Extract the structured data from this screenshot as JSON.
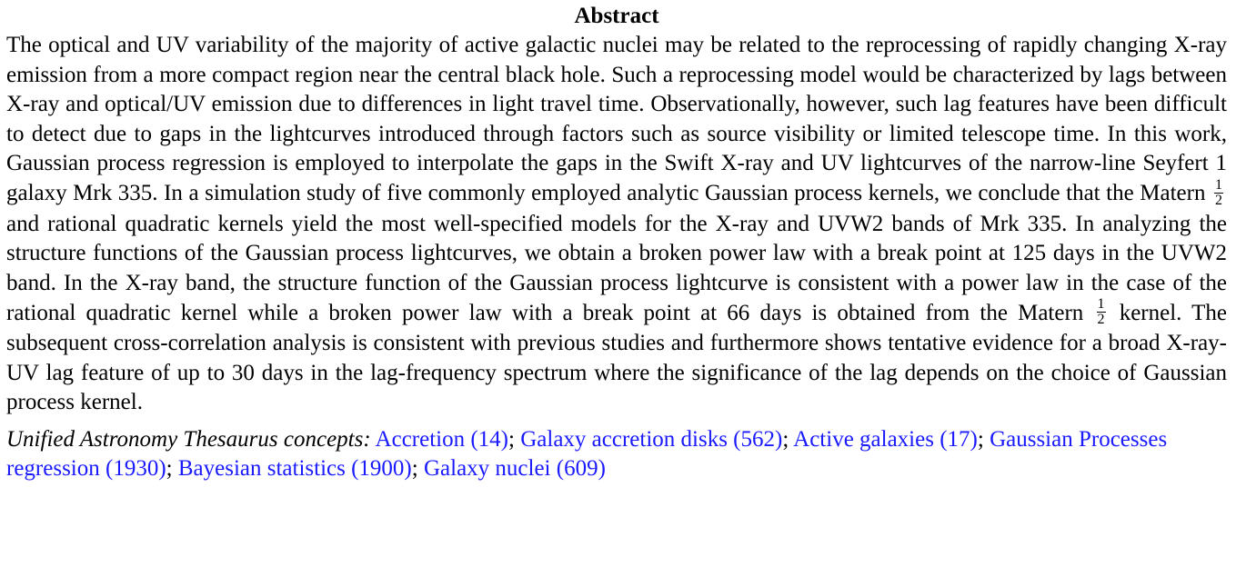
{
  "heading": "Abstract",
  "body": {
    "part1": "The optical and UV variability of the majority of active galactic nuclei may be related to the reprocessing of rapidly changing X-ray emission from a more compact region near the central black hole. Such a reprocessing model would be characterized by lags between X-ray and optical/UV emission due to differences in light travel time. Observationally, however, such lag features have been difficult to detect due to gaps in the lightcurves introduced through factors such as source visibility or limited telescope time. In this work, Gaussian process regression is employed to interpolate the gaps in the Swift X-ray and UV lightcurves of the narrow-line Seyfert 1 galaxy Mrk 335. In a simulation study of five commonly employed analytic Gaussian process kernels, we conclude that the Matern",
    "frac1_num": "1",
    "frac1_den": "2",
    "part2": "and rational quadratic kernels yield the most well-specified models for the X-ray and UVW2 bands of Mrk 335. In analyzing the structure functions of the Gaussian process lightcurves, we obtain a broken power law with a break point at 125 days in the UVW2 band. In the X-ray band, the structure function of the Gaussian process lightcurve is consistent with a power law in the case of the rational quadratic kernel while a broken power law with a break point at 66 days is obtained from the Matern",
    "frac2_num": "1",
    "frac2_den": "2",
    "part3": "kernel. The subsequent cross-correlation analysis is consistent with previous studies and furthermore shows tentative evidence for a broad X-ray-UV lag feature of up to 30 days in the lag-frequency spectrum where the significance of the lag depends on the choice of Gaussian process kernel."
  },
  "uat": {
    "label": "Unified Astronomy Thesaurus concepts:",
    "concepts": [
      "Accretion (14)",
      "Galaxy accretion disks (562)",
      "Active galaxies (17)",
      "Gaussian Processes regression (1930)",
      "Bayesian statistics (1900)",
      "Galaxy nuclei (609)"
    ],
    "separator": ";",
    "link_color": "#1a1aff"
  }
}
